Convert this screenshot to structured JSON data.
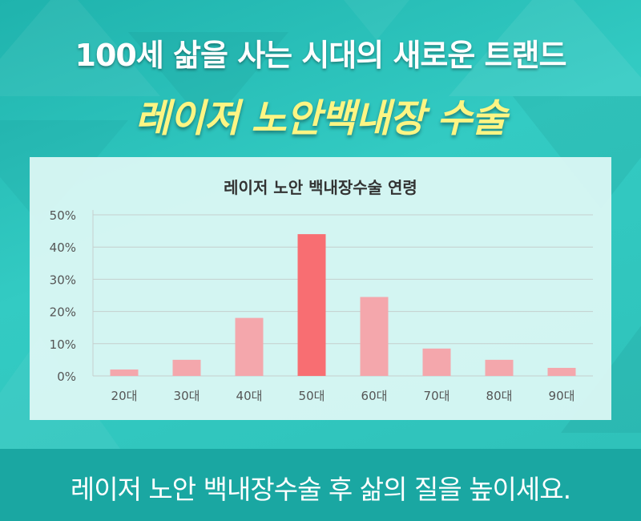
{
  "header": {
    "line1": "100세 삶을 사는 시대의 새로운 트랜드",
    "line2": "레이저 노안백내장 수술"
  },
  "colors": {
    "bar": "#f4a7ac",
    "bar_highlight": "#f86e72",
    "grid": "#c5cfcd",
    "axis_text": "#555555"
  },
  "chart_data": {
    "type": "bar",
    "title": "레이저 노안 백내장수술 연령",
    "categories": [
      "20대",
      "30대",
      "40대",
      "50대",
      "60대",
      "70대",
      "80대",
      "90대"
    ],
    "values": [
      2,
      5,
      18,
      44,
      24.5,
      8.5,
      5,
      2.5
    ],
    "highlight_index": 3,
    "yticks": [
      "0%",
      "10%",
      "20%",
      "30%",
      "40%",
      "50%"
    ],
    "ylim": [
      0,
      50
    ],
    "grid": true,
    "xlabel": "",
    "ylabel": ""
  },
  "footer": {
    "text": "레이저 노안 백내장수술 후 삶의 질을 높이세요."
  }
}
